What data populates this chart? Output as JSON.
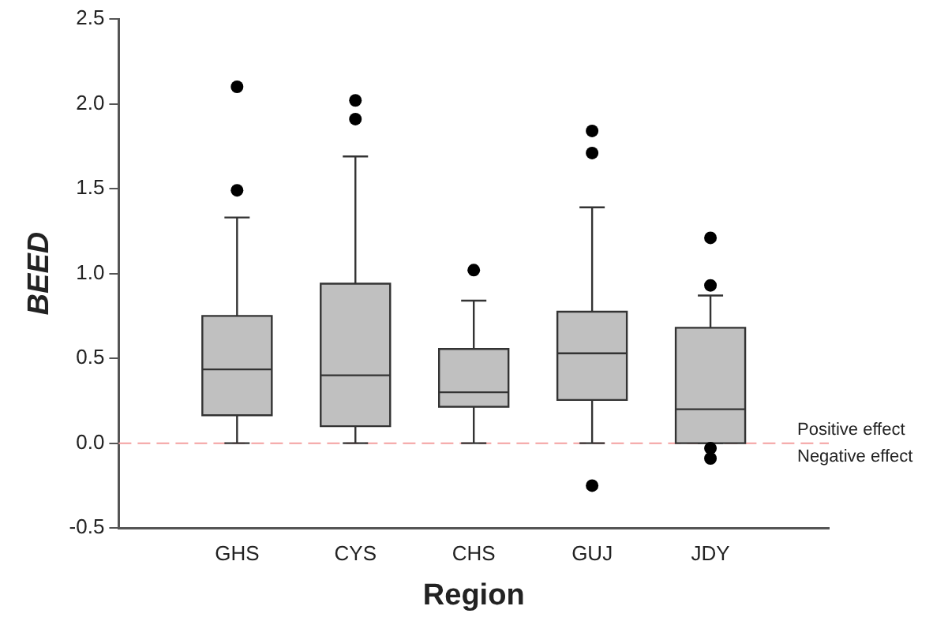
{
  "chart_data": {
    "type": "box",
    "xlabel": "Region",
    "ylabel": "BEED",
    "categories": [
      "GHS",
      "CYS",
      "CHS",
      "GUJ",
      "JDY"
    ],
    "color": "#c0c0c0",
    "boxes": [
      {
        "low": 0,
        "q1": 0.165,
        "median": 0.435,
        "q3": 0.75,
        "high": 1.33,
        "outliers": [
          1.49,
          2.1
        ]
      },
      {
        "low": 0,
        "q1": 0.1,
        "median": 0.4,
        "q3": 0.94,
        "high": 1.69,
        "outliers": [
          1.91,
          2.02
        ]
      },
      {
        "low": 0,
        "q1": 0.215,
        "median": 0.3,
        "q3": 0.555,
        "high": 0.84,
        "outliers": [
          1.02
        ]
      },
      {
        "low": 0,
        "q1": 0.255,
        "median": 0.53,
        "q3": 0.775,
        "high": 1.39,
        "outliers": [
          1.71,
          1.84,
          -0.25
        ]
      },
      {
        "low": 0,
        "q1": 0,
        "median": 0.2,
        "q3": 0.68,
        "high": 0.87,
        "outliers": [
          0.93,
          1.21,
          -0.03,
          -0.09
        ]
      }
    ],
    "ylim": [
      -0.5,
      2.5
    ],
    "yticks": [
      {
        "value": -0.5,
        "label": "-0.5"
      },
      {
        "value": 0,
        "label": "0.0"
      },
      {
        "value": 0.5,
        "label": "0.5"
      },
      {
        "value": 1,
        "label": "1.0"
      },
      {
        "value": 1.5,
        "label": "1.5"
      },
      {
        "value": 2,
        "label": "2.0"
      },
      {
        "value": 2.5,
        "label": "2.5"
      }
    ],
    "ref_lines": [
      {
        "axis": "y",
        "value": 0,
        "color": "#f4a0a0",
        "line_style": "dashed"
      }
    ],
    "annotations": [
      "Positive effect",
      "Negative effect"
    ],
    "grid": false,
    "legend": false
  }
}
